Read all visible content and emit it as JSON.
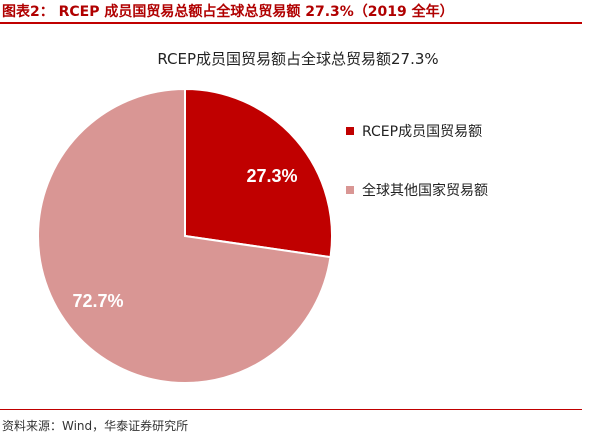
{
  "figure": {
    "title": "图表2： RCEP 成员国贸易总额占全球总贸易额 27.3%（2019 全年）",
    "source": "资料来源：Wind，华泰证券研究所"
  },
  "colors": {
    "accent": "#c00000",
    "series_rcep": "#c00000",
    "series_rest": "#d99694"
  },
  "chart_data": {
    "type": "pie",
    "title": "RCEP成员国贸易额占全球总贸易额27.3%",
    "slices": [
      {
        "name": "RCEP成员国贸易额",
        "value": 27.3,
        "label": "27.3%",
        "color": "#c00000"
      },
      {
        "name": "全球其他国家贸易额",
        "value": 72.7,
        "label": "72.7%",
        "color": "#d99694"
      }
    ],
    "legend_position": "right"
  }
}
